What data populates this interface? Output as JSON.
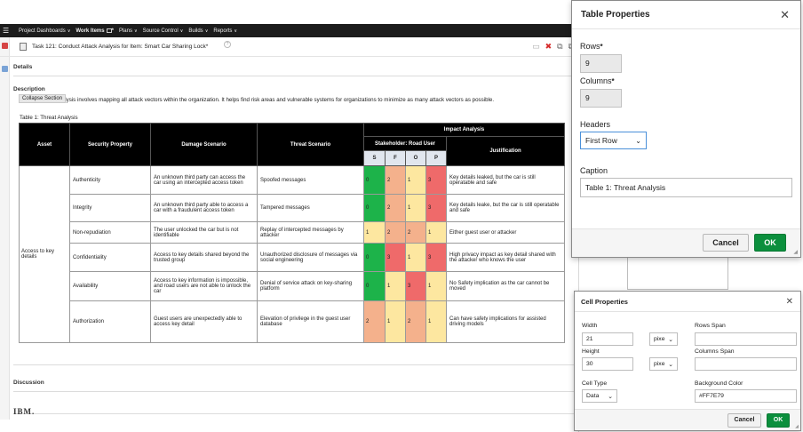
{
  "nav": {
    "menus": [
      "Project Dashboards",
      "Work Items",
      "Plans",
      "Source Control",
      "Builds",
      "Reports"
    ],
    "active_index": 1,
    "work_items_badge": "*"
  },
  "work_item": {
    "title": "Task 121: Conduct Attack Analysis for Item: Smart Car Sharing Lock*",
    "help_glyph": "?"
  },
  "sections": {
    "details": "Details",
    "description": "Description",
    "collapse_tooltip": "Collapse Section",
    "description_text": "Attack surface analysis involves mapping all attack vectors within the organization. It helps find risk areas and vulnerable systems for organizations to minimize as many attack vectors as possible.",
    "table_caption": "Table 1: Threat Analysis",
    "discussion": "Discussion"
  },
  "threat_table": {
    "headers": {
      "asset": "Asset",
      "security_property": "Security Property",
      "damage_scenario": "Damage Scenario",
      "threat_scenario": "Threat Scenario",
      "impact_analysis": "Impact Analysis",
      "stakeholder": "Stakeholder: Road User",
      "justification": "Justification",
      "impact_cols": [
        "S",
        "F",
        "O",
        "P"
      ]
    },
    "asset": "Access to key details",
    "rows": [
      {
        "property": "Authenticity",
        "damage": "An unknown third party can access the car using an intercepted access token",
        "threat": "Spoofed messages",
        "impact": [
          "0",
          "2",
          "1",
          "3"
        ],
        "justification": "Key details leaked, but the car is still operatable and safe"
      },
      {
        "property": "Integrity",
        "damage": "An unknown third party able to access a car with a fraudulent access token",
        "threat": "Tampered messages",
        "impact": [
          "0",
          "2",
          "1",
          "3"
        ],
        "justification": "Key details leake, but the car is still operatable and safe"
      },
      {
        "property": "Non-repudiation",
        "damage": "The user unlocked the car but is not identifiable",
        "threat": "Replay of intercepted messages by attacker",
        "impact": [
          "1",
          "2",
          "2",
          "1"
        ],
        "justification": "Either guest user or attacker"
      },
      {
        "property": "Confidentiality",
        "damage": "Access to key details shared beyond the trusted group",
        "threat": "Unauthorized disclosure of messages via social engineering",
        "impact": [
          "0",
          "3",
          "1",
          "3"
        ],
        "justification": "High privacy impact as key detail shared with the attacker who knows the user"
      },
      {
        "property": "Availability",
        "damage": "Access to key information is impossible, and road users are not able to unlock the car",
        "threat": "Denial of service attack on key-sharing platform",
        "impact": [
          "0",
          "1",
          "3",
          "1"
        ],
        "justification": "No Safety implication as the car cannot be moved"
      },
      {
        "property": "Authorization",
        "damage": "Guest users are unexpectedly able to access key detail",
        "threat": "Elevation of privilege in the guest user database",
        "impact": [
          "2",
          "1",
          "2",
          "1"
        ],
        "justification": "Can have safety implications for assisted driving models"
      }
    ],
    "impact_colors": {
      "0": "#1db34a",
      "1": "#fde7a0",
      "2": "#f4b18c",
      "3": "#ef6a6a"
    },
    "impact_header_bg": "#e1e6ee"
  },
  "footer": {
    "logo": "IBM."
  },
  "table_properties": {
    "title": "Table Properties",
    "close_glyph": "✕",
    "rows_label": "Rows",
    "rows_value": "9",
    "columns_label": "Columns",
    "columns_value": "9",
    "required_mark": "*",
    "headers_label": "Headers",
    "headers_value": "First Row",
    "caption_label": "Caption",
    "caption_value": "Table 1: Threat Analysis",
    "cancel": "Cancel",
    "ok": "OK"
  },
  "cell_properties": {
    "title": "Cell Properties",
    "close_glyph": "✕",
    "width_label": "Width",
    "width_value": "21",
    "width_unit": "pixe",
    "height_label": "Height",
    "height_value": "30",
    "height_unit": "pixe",
    "rows_span_label": "Rows Span",
    "rows_span_value": "",
    "columns_span_label": "Columns Span",
    "columns_span_value": "",
    "cell_type_label": "Cell Type",
    "cell_type_value": "Data",
    "bg_color_label": "Background Color",
    "bg_color_value": "#FF7E79",
    "cancel": "Cancel",
    "ok": "OK"
  },
  "colors": {
    "ok_green": "#0b8f3d",
    "topbar": "#1c1c1c",
    "table_header": "#000000"
  }
}
